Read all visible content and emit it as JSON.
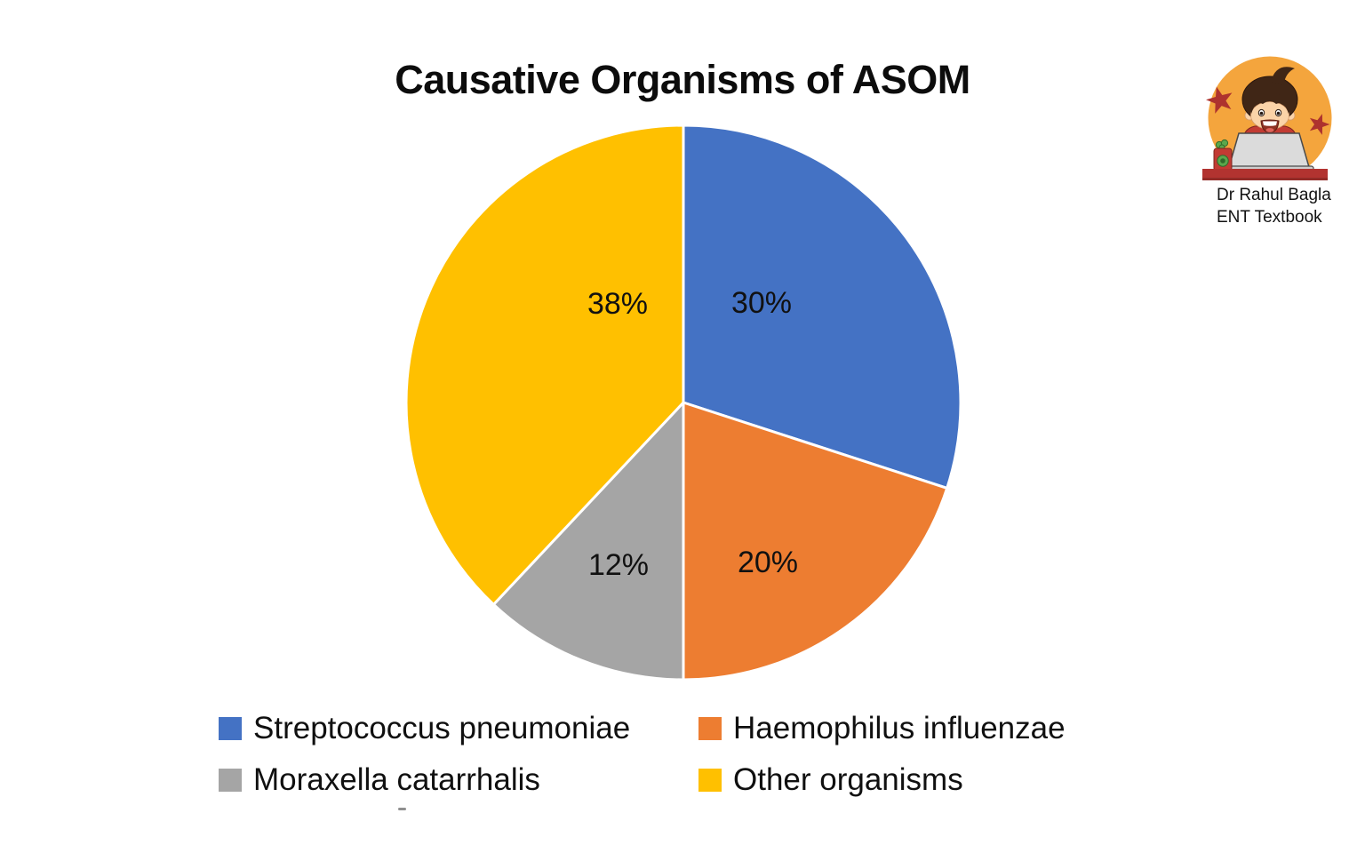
{
  "header": {
    "title": "Causative Organisms of ASOM"
  },
  "chart_data": {
    "type": "pie",
    "title": "Causative Organisms of ASOM",
    "start_angle_deg": 0,
    "direction": "clockwise",
    "slices": [
      {
        "label": "Streptococcus pneumoniae",
        "value": 30,
        "pct_label": "30%",
        "color": "#4472C4"
      },
      {
        "label": "Haemophilus influenzae",
        "value": 20,
        "pct_label": "20%",
        "color": "#ED7D31"
      },
      {
        "label": "Moraxella catarrhalis",
        "value": 12,
        "pct_label": "12%",
        "color": "#A5A5A5"
      },
      {
        "label": "Other organisms",
        "value": 38,
        "pct_label": "38%",
        "color": "#FFC000"
      }
    ],
    "legend_position": "bottom",
    "legend_columns": 2,
    "slice_border_color": "#FFFFFF",
    "label_color": "#111111"
  },
  "logo": {
    "line1": "Dr Rahul Bagla",
    "line2": "ENT Textbook",
    "colors": {
      "circle": "#F4A53D",
      "star": "#AE332E",
      "desk": "#B23330",
      "desk_shadow": "#932B27",
      "hair": "#4026166",
      "hair_main": "#402616",
      "skin": "#FBD3A8",
      "shirt": "#C23B33",
      "laptop": "#DBDBDB",
      "laptop_base": "#CFCFCF",
      "mouth": "#8E3224",
      "bottle_red": "#C23B33",
      "bottle_green": "#5BA84C"
    }
  }
}
